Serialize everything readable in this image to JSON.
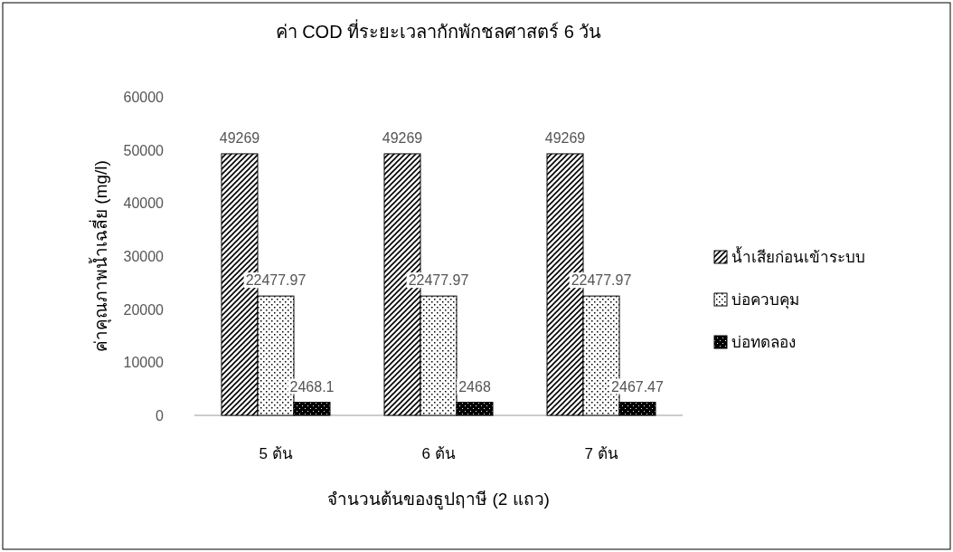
{
  "chart_data": {
    "type": "bar",
    "title": "ค่า COD ที่ระยะเวลากักพักชลศาสตร์ 6 วัน",
    "xlabel": "จำนวนต้นของธูปฤาษี (2 แถว)",
    "ylabel": "ค่าคุณภาพน้ำเฉลี่ย (mg/l)",
    "categories": [
      "5 ต้น",
      "6 ต้น",
      "7 ต้น"
    ],
    "series": [
      {
        "name": "น้ำเสียก่อนเข้าระบบ",
        "color": "#000000",
        "values": [
          49269,
          49269,
          49269
        ]
      },
      {
        "name": "บ่อควบคุม",
        "color": "#000000",
        "values": [
          22477.97,
          22477.97,
          22477.97
        ]
      },
      {
        "name": "บ่อทดลอง",
        "color": "#000000",
        "values": [
          2468.1,
          2468,
          2467.47
        ]
      }
    ],
    "ylim": [
      0,
      60000
    ],
    "yticks": [
      0,
      10000,
      20000,
      30000,
      40000,
      50000,
      60000
    ],
    "data_labels": true,
    "grid": false,
    "legend": "right"
  }
}
